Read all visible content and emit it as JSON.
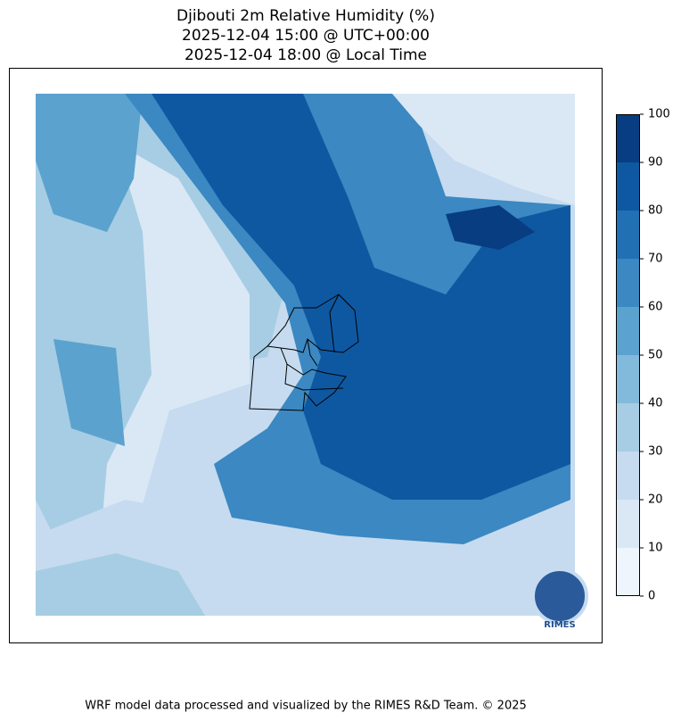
{
  "header": {
    "title_lines": [
      "Djibouti 2m Relative Humidity (%)",
      "2025-12-04 15:00 @ UTC+00:00",
      "2025-12-04 18:00 @ Local Time"
    ]
  },
  "colorbar": {
    "ticks": [
      0,
      10,
      20,
      30,
      40,
      50,
      60,
      70,
      80,
      90,
      100
    ],
    "colors": [
      "#eef5fc",
      "#dae8f5",
      "#c6dbef",
      "#a6cde3",
      "#82badb",
      "#5ba2cf",
      "#3b88c2",
      "#2170b4",
      "#0e58a2",
      "#083d82"
    ]
  },
  "logo": {
    "text": "RIMES"
  },
  "footer": {
    "text": "WRF model data processed and visualized by the RIMES R&D Team. © 2025"
  }
}
